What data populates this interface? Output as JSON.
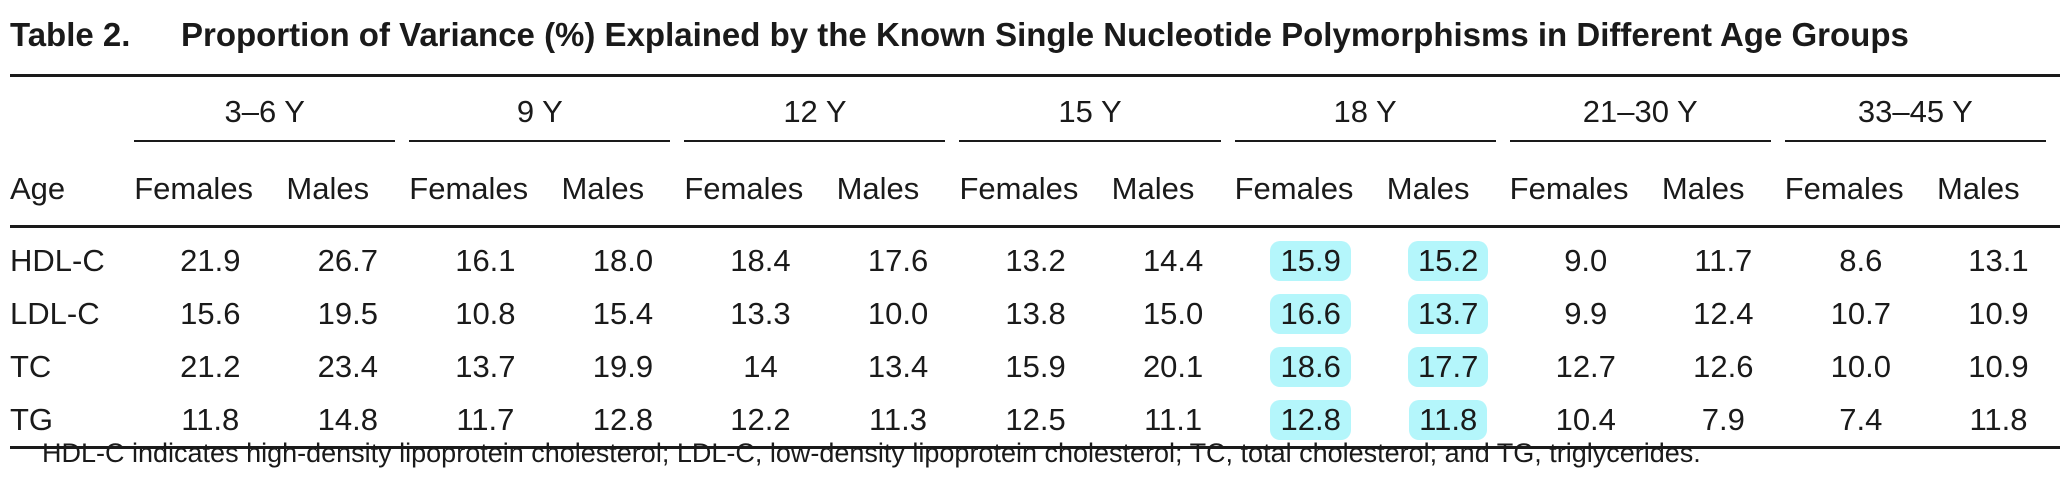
{
  "title": {
    "label": "Table 2.",
    "text": "Proportion of Variance (%) Explained by the Known Single Nucleotide Polymorphisms in Different Age Groups"
  },
  "colors": {
    "highlight": "#b4f6fb",
    "text": "#1a1a1a"
  },
  "table": {
    "age_header": "Age",
    "groups": [
      "3–6 Y",
      "9 Y",
      "12 Y",
      "15 Y",
      "18 Y",
      "21–30 Y",
      "33–45 Y"
    ],
    "sub_headers": [
      "Females",
      "Males"
    ],
    "rows": [
      {
        "label": "HDL-C",
        "values": [
          "21.9",
          "26.7",
          "16.1",
          "18.0",
          "18.4",
          "17.6",
          "13.2",
          "14.4",
          "15.9",
          "15.2",
          "9.0",
          "11.7",
          "8.6",
          "13.1"
        ]
      },
      {
        "label": "LDL-C",
        "values": [
          "15.6",
          "19.5",
          "10.8",
          "15.4",
          "13.3",
          "10.0",
          "13.8",
          "15.0",
          "16.6",
          "13.7",
          "9.9",
          "12.4",
          "10.7",
          "10.9"
        ]
      },
      {
        "label": "TC",
        "values": [
          "21.2",
          "23.4",
          "13.7",
          "19.9",
          "14",
          "13.4",
          "15.9",
          "20.1",
          "18.6",
          "17.7",
          "12.7",
          "12.6",
          "10.0",
          "10.9"
        ]
      },
      {
        "label": "TG",
        "values": [
          "11.8",
          "14.8",
          "11.7",
          "12.8",
          "12.2",
          "11.3",
          "12.5",
          "11.1",
          "12.8",
          "11.8",
          "10.4",
          "7.9",
          "7.4",
          "11.8"
        ]
      }
    ],
    "highlighted_group": "18 Y"
  },
  "footnote": "HDL-C indicates high-density lipoprotein cholesterol; LDL-C, low-density lipoprotein cholesterol; TC, total cholesterol; and TG, triglycerides."
}
